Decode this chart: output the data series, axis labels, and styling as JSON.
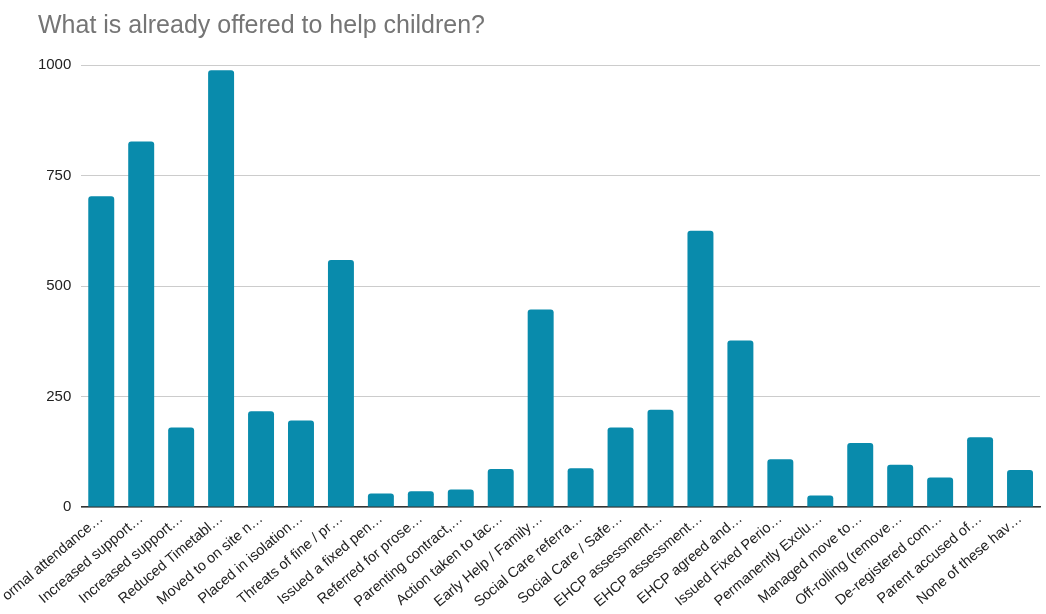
{
  "chart_data": {
    "type": "bar",
    "title": "What is already offered to help children?",
    "categories": [
      "ormal attendance…",
      "Increased support…",
      "Increased support…",
      "Reduced Timetabl…",
      "Moved to on site n…",
      "Placed in isolation…",
      "Threats of fine / pr…",
      "Issued a fixed pen…",
      "Referred for prose…",
      "Parenting contract,…",
      "Action taken to tac…",
      "Early Help / Family…",
      "Social Care referra…",
      "Social Care / Safe…",
      "EHCP assessment…",
      "EHCP assessment…",
      "EHCP agreed and…",
      "Issued Fixed Perio…",
      "Permanently Exclu…",
      "Managed move to…",
      "Off-rolling (remove…",
      "De-registered com…",
      "Parent accused of…",
      "None of these hav…"
    ],
    "values": [
      703,
      827,
      180,
      988,
      217,
      196,
      559,
      31,
      36,
      40,
      86,
      447,
      88,
      180,
      220,
      625,
      377,
      108,
      26,
      145,
      96,
      67,
      158,
      84
    ],
    "color": "#098bac",
    "ylim": [
      0,
      1000
    ],
    "yticks": [
      0,
      250,
      500,
      750,
      1000
    ],
    "grid": "y"
  }
}
